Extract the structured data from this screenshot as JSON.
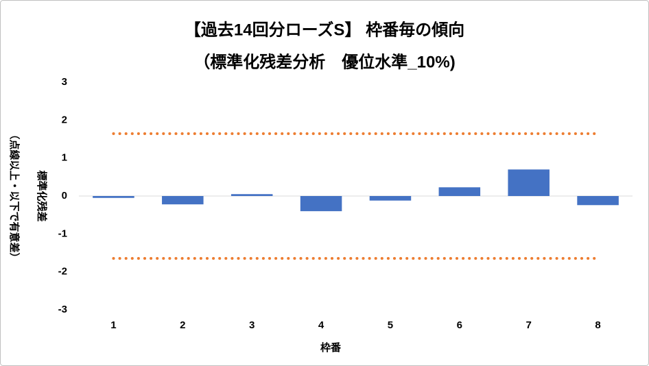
{
  "chart_data": {
    "type": "bar",
    "title": "【過去14回分ローズS】 枠番毎の傾向",
    "subtitle": "（標準化残差分析　優位水準_10%)",
    "y_label": "標準化残差",
    "y_label_note": "（点線以上・以下で有意差）",
    "x_label": "枠番",
    "categories": [
      "1",
      "2",
      "3",
      "4",
      "5",
      "6",
      "7",
      "8"
    ],
    "values": [
      -0.05,
      -0.22,
      0.05,
      -0.4,
      -0.12,
      0.23,
      0.7,
      -0.24
    ],
    "color": "#4472c4",
    "reference_lines": [
      {
        "value": 1.645,
        "color": "#ed7d31"
      },
      {
        "value": -1.645,
        "color": "#ed7d31"
      }
    ],
    "ylim": [
      -3,
      3
    ],
    "yticks": [
      -3,
      -2,
      -1,
      0,
      1,
      2,
      3
    ],
    "grid": false
  }
}
